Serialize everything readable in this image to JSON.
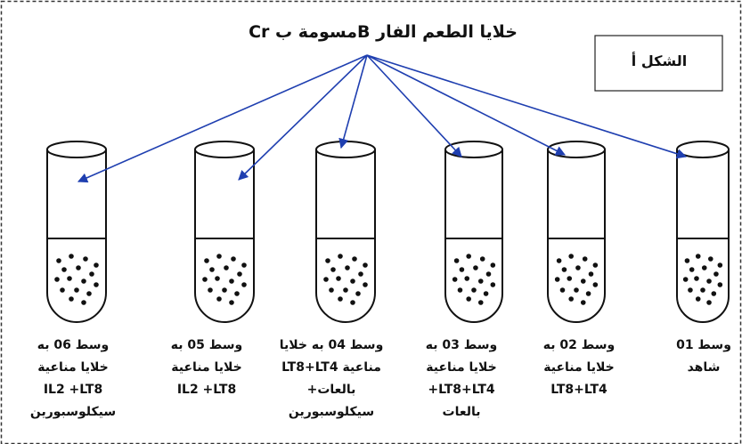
{
  "title": "خلايا الطعم الفار Bمسومة ب Cr",
  "figure_label": "الشكل أ",
  "tubes": [
    {
      "lines": [
        "وسط 06 به",
        "خلايا مناعية",
        "IL2 +LT8",
        "سيكلوسبورين"
      ]
    },
    {
      "lines": [
        "وسط 05 به",
        "خلايا مناعية",
        "IL2 +LT8"
      ]
    },
    {
      "lines": [
        "وسط 04 به خلايا",
        "مناعية LT8+LT4",
        "بالعات+",
        "سيكلوسبورين"
      ]
    },
    {
      "lines": [
        "وسط 03 به",
        "خلايا مناعية",
        "+LT8+LT4",
        "بالعات"
      ]
    },
    {
      "lines": [
        "وسط 02 به",
        "خلايا مناعية",
        "LT8+LT4"
      ]
    },
    {
      "lines": [
        "وسط 01",
        "شاهد"
      ]
    }
  ]
}
